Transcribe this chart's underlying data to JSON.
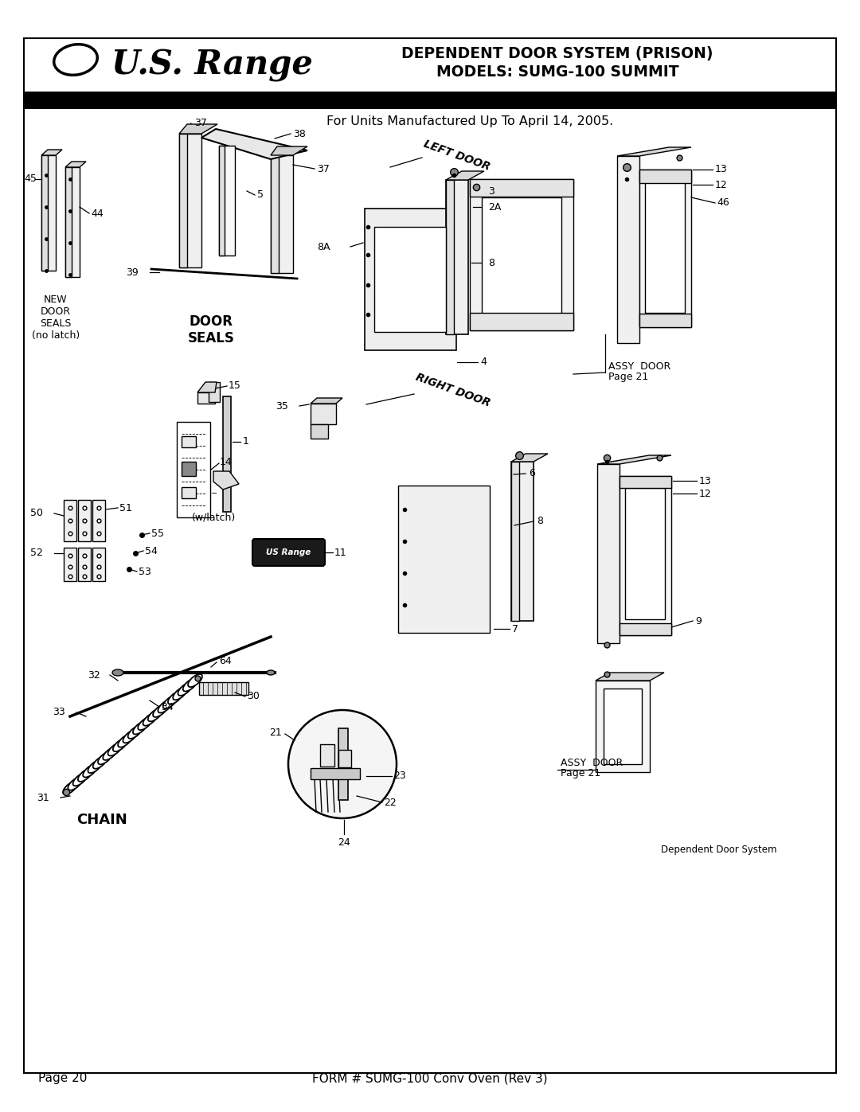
{
  "bg_color": "#ffffff",
  "page_bg": "#ffffff",
  "title_line1": "DEPENDENT DOOR SYSTEM (PRISON)",
  "title_line2": "MODELS: SUMG-100 SUMMIT",
  "logo_text": "U.S. Range",
  "subtitle": "For Units Manufactured Up To April 14, 2005.",
  "footer_left": "Page 20",
  "footer_center": "FORM # SUMG-100 Conv Oven (Rev 3)",
  "dep_door_text": "Dependent Door System",
  "figsize": [
    10.8,
    13.97
  ],
  "dpi": 100
}
